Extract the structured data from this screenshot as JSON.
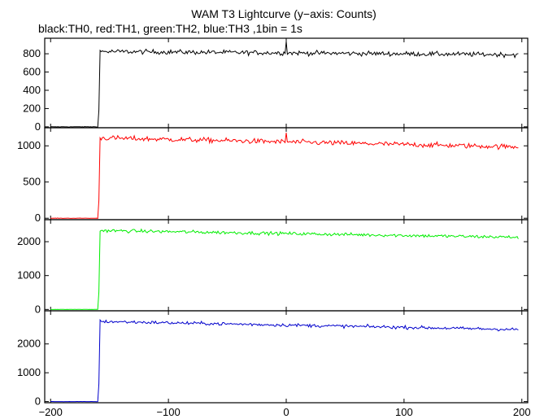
{
  "chart_data": {
    "type": "line",
    "title": "WAM T3 Lightcurve (y−axis: Counts)",
    "subtitle": "black:TH0, red:TH1, green:TH2, blue:TH3 ,1bin = 1s",
    "xlim": [
      -205,
      205
    ],
    "x_ticks": [
      -200,
      -100,
      0,
      100,
      200
    ],
    "x_tick_labels": [
      "−200",
      "−100",
      "0",
      "100",
      "200"
    ],
    "x_range": [
      -200,
      197
    ],
    "grid": false,
    "panels": [
      {
        "name": "TH0",
        "color": "#000000",
        "ylim": [
          -10,
          970
        ],
        "yticks": [
          0,
          200,
          400,
          600,
          800
        ],
        "y_tick_labels": [
          "0",
          "200",
          "400",
          "600",
          "800"
        ],
        "step_x": -159,
        "pre_level": 0,
        "post_start": 825,
        "post_end": 790,
        "noise": 18,
        "spikes": [
          {
            "x": 0,
            "y": 935
          }
        ]
      },
      {
        "name": "TH1",
        "color": "#ff0000",
        "ylim": [
          -20,
          1250
        ],
        "yticks": [
          0,
          500,
          1000
        ],
        "y_tick_labels": [
          "0",
          "500",
          "1000"
        ],
        "step_x": -159,
        "pre_level": 0,
        "post_start": 1110,
        "post_end": 985,
        "noise": 25,
        "spikes": [
          {
            "x": 0,
            "y": 1180
          }
        ]
      },
      {
        "name": "TH2",
        "color": "#00ee00",
        "ylim": [
          -40,
          2650
        ],
        "yticks": [
          0,
          1000,
          2000
        ],
        "y_tick_labels": [
          "0",
          "1000",
          "2000"
        ],
        "step_x": -159,
        "pre_level": 0,
        "post_start": 2330,
        "post_end": 2130,
        "noise": 35,
        "spikes": []
      },
      {
        "name": "TH3",
        "color": "#0000cc",
        "ylim": [
          -40,
          3150
        ],
        "yticks": [
          0,
          1000,
          2000
        ],
        "y_tick_labels": [
          "0",
          "1000",
          "2000"
        ],
        "step_x": -159,
        "pre_level": 0,
        "post_start": 2780,
        "post_end": 2500,
        "noise": 40,
        "spikes": []
      }
    ]
  }
}
